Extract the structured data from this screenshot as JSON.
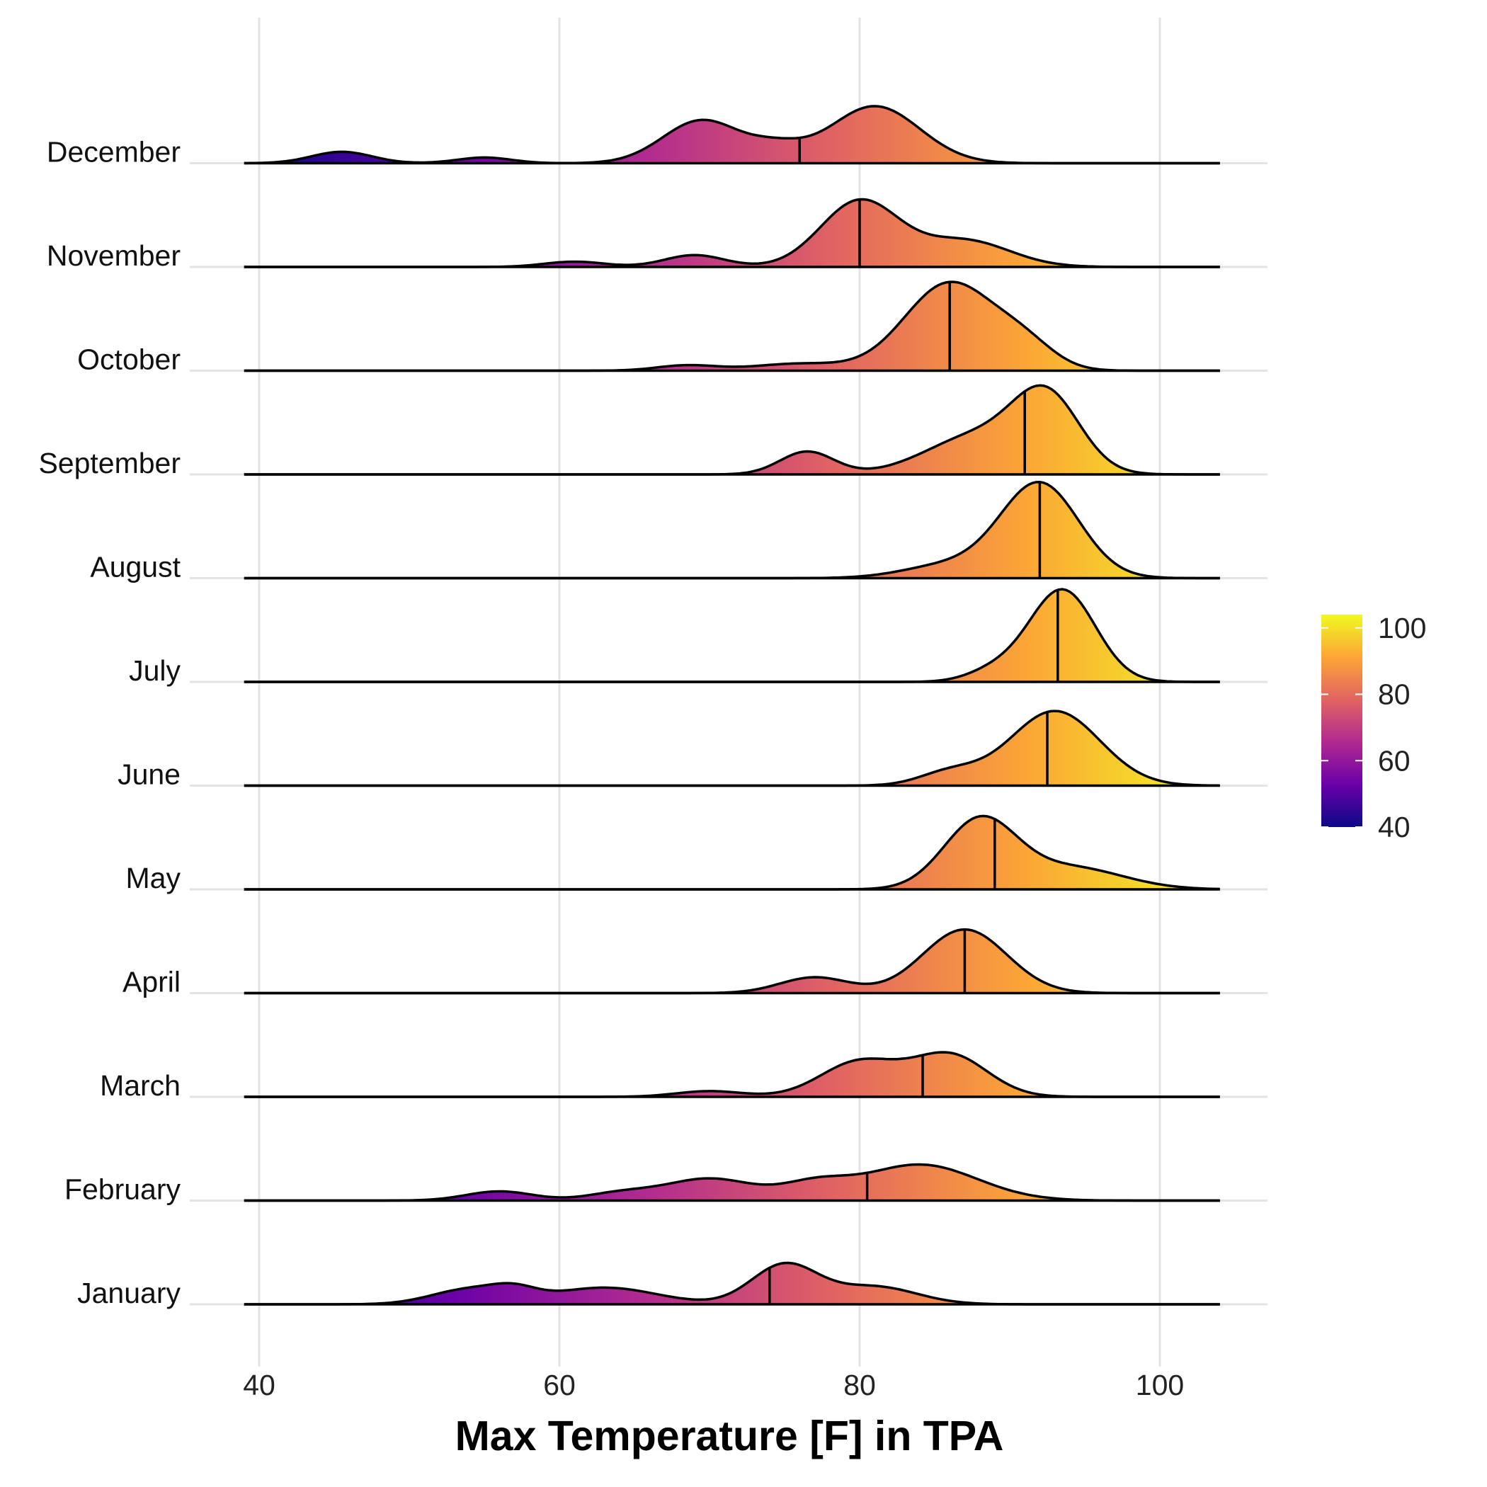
{
  "chart_data": {
    "type": "ridgeline",
    "xlabel": "Max Temperature [F] in TPA",
    "xlim": [
      39,
      104
    ],
    "xticks": [
      40,
      60,
      80,
      100
    ],
    "grid": true,
    "legend": {
      "position": "right",
      "ticks": [
        40,
        60,
        80,
        100
      ],
      "range": [
        40,
        104
      ]
    },
    "colormap": [
      "#0d0887",
      "#6a00a8",
      "#b12a90",
      "#e16462",
      "#fca636",
      "#f0f921"
    ],
    "series": [
      {
        "name": "January",
        "median": 74.0,
        "peaks": [
          [
            54,
            0.34,
            2.5
          ],
          [
            57,
            0.22,
            1.5
          ],
          [
            63,
            0.38,
            3.5
          ],
          [
            75,
            0.9,
            2.2
          ],
          [
            81,
            0.4,
            2.8
          ]
        ]
      },
      {
        "name": "February",
        "median": 80.5,
        "peaks": [
          [
            56,
            0.21,
            2.2
          ],
          [
            64,
            0.16,
            2.2
          ],
          [
            70,
            0.5,
            3.0
          ],
          [
            77,
            0.34,
            2.2
          ],
          [
            84,
            0.82,
            3.8
          ]
        ]
      },
      {
        "name": "March",
        "median": 84.2,
        "peaks": [
          [
            70,
            0.13,
            2.2
          ],
          [
            80,
            0.8,
            2.6
          ],
          [
            86,
            0.95,
            2.5
          ]
        ]
      },
      {
        "name": "April",
        "median": 87.0,
        "peaks": [
          [
            77,
            0.36,
            2.3
          ],
          [
            87,
            1.45,
            2.8
          ]
        ]
      },
      {
        "name": "May",
        "median": 89.0,
        "peaks": [
          [
            88,
            1.55,
            2.4
          ],
          [
            94,
            0.5,
            3.5
          ]
        ]
      },
      {
        "name": "June",
        "median": 92.5,
        "peaks": [
          [
            86,
            0.3,
            2.0
          ],
          [
            93,
            1.7,
            3.0
          ]
        ]
      },
      {
        "name": "July",
        "median": 93.2,
        "peaks": [
          [
            89,
            0.25,
            1.8
          ],
          [
            93.5,
            2.1,
            2.2
          ]
        ]
      },
      {
        "name": "August",
        "median": 92.0,
        "peaks": [
          [
            86,
            0.3,
            3.0
          ],
          [
            92,
            2.15,
            2.6
          ]
        ]
      },
      {
        "name": "September",
        "median": 91.0,
        "peaks": [
          [
            76.5,
            0.52,
            1.8
          ],
          [
            88,
            0.9,
            3.5
          ],
          [
            92.5,
            1.6,
            2.2
          ]
        ]
      },
      {
        "name": "October",
        "median": 86.0,
        "peaks": [
          [
            68.5,
            0.12,
            2.0
          ],
          [
            76,
            0.16,
            3.0
          ],
          [
            86,
            2.0,
            3.0
          ],
          [
            91,
            0.5,
            2.0
          ]
        ]
      },
      {
        "name": "November",
        "median": 80.0,
        "peaks": [
          [
            61,
            0.12,
            2.0
          ],
          [
            69,
            0.27,
            2.0
          ],
          [
            80,
            1.5,
            2.6
          ],
          [
            87,
            0.6,
            3.0
          ]
        ]
      },
      {
        "name": "December",
        "median": 76.0,
        "peaks": [
          [
            45.5,
            0.26,
            2.0
          ],
          [
            55,
            0.13,
            1.8
          ],
          [
            69.5,
            0.98,
            2.6
          ],
          [
            74.5,
            0.3,
            1.8
          ],
          [
            81,
            1.3,
            3.0
          ]
        ]
      }
    ]
  }
}
